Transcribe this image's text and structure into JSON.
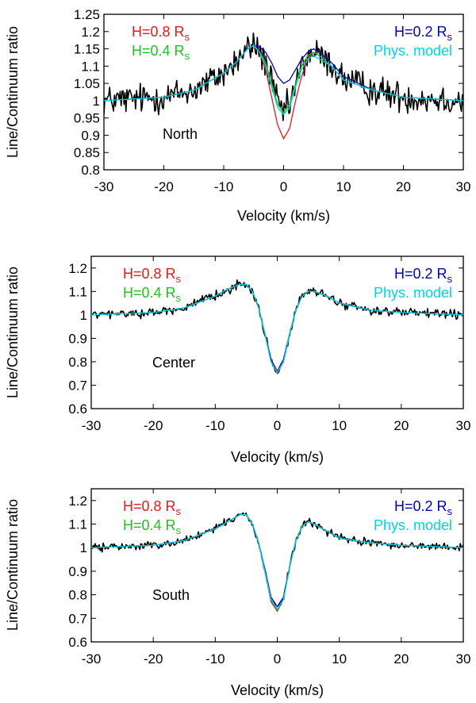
{
  "chart_data": [
    {
      "type": "line",
      "panel": "North",
      "annotation": "North",
      "xlabel": "Velocity (km/s)",
      "ylabel": "Line/Continuum ratio",
      "xlim": [
        -30,
        30
      ],
      "ylim": [
        0.8,
        1.25
      ],
      "xticks": [
        -30,
        -20,
        -10,
        0,
        10,
        20,
        30
      ],
      "yticks": [
        0.8,
        0.85,
        0.9,
        0.95,
        1,
        1.05,
        1.1,
        1.15,
        1.2,
        1.25
      ],
      "ytick_labels": [
        "0.8",
        "0.85",
        "0.9",
        "0.95",
        "1",
        "1.05",
        "1.1",
        "1.15",
        "1.2",
        "1.25"
      ],
      "legend": [
        {
          "text": "H=0.8 R",
          "sub": "s",
          "color": "#e31a1c",
          "position": "top-left"
        },
        {
          "text": "H=0.4 R",
          "sub": "s",
          "color": "#22c022",
          "position": "top-left"
        },
        {
          "text": "H=0.2 R",
          "sub": "s",
          "color": "#0000b4",
          "position": "top-right"
        },
        {
          "text": "Phys. model",
          "sub": "",
          "color": "#00d4e0",
          "position": "top-right"
        }
      ],
      "model_x": [
        -30,
        -20,
        -15,
        -10,
        -8,
        -6,
        -5,
        -4,
        -3,
        -2,
        -1,
        0,
        1,
        2,
        3,
        4,
        5,
        6,
        8,
        10,
        15,
        20,
        30
      ],
      "series": [
        {
          "name": "H=0.8 Rs",
          "color": "#e31a1c",
          "values": [
            1.0,
            1.01,
            1.03,
            1.08,
            1.11,
            1.15,
            1.16,
            1.14,
            1.09,
            1.01,
            0.93,
            0.89,
            0.92,
            1.0,
            1.07,
            1.12,
            1.14,
            1.13,
            1.1,
            1.06,
            1.03,
            1.01,
            1.0
          ]
        },
        {
          "name": "H=0.4 Rs",
          "color": "#22c022",
          "values": [
            1.0,
            1.01,
            1.03,
            1.08,
            1.11,
            1.15,
            1.16,
            1.14,
            1.11,
            1.05,
            0.99,
            0.965,
            0.99,
            1.05,
            1.1,
            1.13,
            1.14,
            1.13,
            1.1,
            1.06,
            1.03,
            1.01,
            1.0
          ]
        },
        {
          "name": "H=0.2 Rs",
          "color": "#0000b4",
          "values": [
            1.0,
            1.01,
            1.03,
            1.08,
            1.11,
            1.15,
            1.16,
            1.155,
            1.14,
            1.11,
            1.07,
            1.05,
            1.06,
            1.09,
            1.12,
            1.14,
            1.15,
            1.14,
            1.11,
            1.07,
            1.03,
            1.01,
            1.0
          ]
        },
        {
          "name": "Phys. model",
          "color": "#00d4e0",
          "values": [
            1.0,
            1.01,
            1.03,
            1.08,
            1.11,
            1.15,
            1.16,
            1.14,
            1.1,
            1.04,
            0.98,
            0.96,
            0.98,
            1.04,
            1.09,
            1.12,
            1.13,
            1.12,
            1.1,
            1.06,
            1.03,
            1.01,
            1.0
          ]
        }
      ],
      "observed": {
        "name": "Observed",
        "color": "#000000",
        "noise": 0.022,
        "spacing": 0.16
      }
    },
    {
      "type": "line",
      "panel": "Center",
      "annotation": "Center",
      "xlabel": "Velocity (km/s)",
      "ylabel": "Line/Continuum ratio",
      "xlim": [
        -30,
        30
      ],
      "ylim": [
        0.6,
        1.25
      ],
      "xticks": [
        -30,
        -20,
        -10,
        0,
        10,
        20,
        30
      ],
      "yticks": [
        0.6,
        0.7,
        0.8,
        0.9,
        1,
        1.1,
        1.2
      ],
      "ytick_labels": [
        "0.6",
        "0.7",
        "0.8",
        "0.9",
        "1",
        "1.1",
        "1.2"
      ],
      "legend": [
        {
          "text": "H=0.8 R",
          "sub": "s",
          "color": "#e31a1c",
          "position": "top-left"
        },
        {
          "text": "H=0.4 R",
          "sub": "s",
          "color": "#22c022",
          "position": "top-left"
        },
        {
          "text": "H=0.2 R",
          "sub": "s",
          "color": "#0000b4",
          "position": "top-right"
        },
        {
          "text": "Phys. model",
          "sub": "",
          "color": "#00d4e0",
          "position": "top-right"
        }
      ],
      "model_x": [
        -30,
        -20,
        -15,
        -10,
        -8,
        -6,
        -5,
        -4,
        -3,
        -2,
        -1,
        0,
        1,
        2,
        3,
        4,
        5,
        6,
        8,
        10,
        15,
        20,
        30
      ],
      "series": [
        {
          "name": "H=0.8 Rs",
          "color": "#e31a1c",
          "values": [
            1.0,
            1.01,
            1.03,
            1.08,
            1.11,
            1.13,
            1.13,
            1.1,
            1.03,
            0.92,
            0.8,
            0.75,
            0.8,
            0.92,
            1.02,
            1.08,
            1.1,
            1.1,
            1.08,
            1.05,
            1.02,
            1.01,
            1.0
          ]
        },
        {
          "name": "H=0.4 Rs",
          "color": "#22c022",
          "values": [
            1.0,
            1.01,
            1.03,
            1.08,
            1.11,
            1.13,
            1.13,
            1.1,
            1.03,
            0.92,
            0.8,
            0.755,
            0.8,
            0.92,
            1.02,
            1.08,
            1.1,
            1.1,
            1.08,
            1.05,
            1.02,
            1.01,
            1.0
          ]
        },
        {
          "name": "H=0.2 Rs",
          "color": "#0000b4",
          "values": [
            1.0,
            1.01,
            1.03,
            1.08,
            1.11,
            1.13,
            1.13,
            1.1,
            1.03,
            0.92,
            0.81,
            0.76,
            0.81,
            0.92,
            1.02,
            1.08,
            1.1,
            1.1,
            1.08,
            1.05,
            1.02,
            1.01,
            1.0
          ]
        },
        {
          "name": "Phys. model",
          "color": "#00d4e0",
          "values": [
            1.0,
            1.01,
            1.03,
            1.08,
            1.11,
            1.13,
            1.13,
            1.1,
            1.03,
            0.92,
            0.8,
            0.755,
            0.8,
            0.92,
            1.02,
            1.08,
            1.1,
            1.1,
            1.08,
            1.05,
            1.02,
            1.01,
            1.0
          ]
        }
      ],
      "observed": {
        "name": "Observed",
        "color": "#000000",
        "noise": 0.009,
        "spacing": 0.16
      }
    },
    {
      "type": "line",
      "panel": "South",
      "annotation": "South",
      "xlabel": "Velocity (km/s)",
      "ylabel": "Line/Continuum ratio",
      "xlim": [
        -30,
        30
      ],
      "ylim": [
        0.6,
        1.25
      ],
      "xticks": [
        -30,
        -20,
        -10,
        0,
        10,
        20,
        30
      ],
      "yticks": [
        0.6,
        0.7,
        0.8,
        0.9,
        1,
        1.1,
        1.2
      ],
      "ytick_labels": [
        "0.6",
        "0.7",
        "0.8",
        "0.9",
        "1",
        "1.1",
        "1.2"
      ],
      "legend": [
        {
          "text": "H=0.8 R",
          "sub": "s",
          "color": "#e31a1c",
          "position": "top-left"
        },
        {
          "text": "H=0.4 R",
          "sub": "s",
          "color": "#22c022",
          "position": "top-left"
        },
        {
          "text": "H=0.2 R",
          "sub": "s",
          "color": "#0000b4",
          "position": "top-right"
        },
        {
          "text": "Phys. model",
          "sub": "",
          "color": "#00d4e0",
          "position": "top-right"
        }
      ],
      "model_x": [
        -30,
        -20,
        -15,
        -10,
        -8,
        -6,
        -5,
        -4,
        -3,
        -2,
        -1,
        0,
        1,
        2,
        3,
        4,
        5,
        6,
        8,
        10,
        15,
        20,
        30
      ],
      "series": [
        {
          "name": "H=0.8 Rs",
          "color": "#e31a1c",
          "values": [
            1.0,
            1.01,
            1.03,
            1.08,
            1.11,
            1.14,
            1.14,
            1.1,
            1.02,
            0.9,
            0.77,
            0.73,
            0.78,
            0.92,
            1.03,
            1.09,
            1.11,
            1.1,
            1.07,
            1.04,
            1.02,
            1.01,
            1.0
          ]
        },
        {
          "name": "H=0.4 Rs",
          "color": "#22c022",
          "values": [
            1.0,
            1.01,
            1.03,
            1.08,
            1.11,
            1.14,
            1.14,
            1.1,
            1.02,
            0.9,
            0.78,
            0.735,
            0.78,
            0.92,
            1.03,
            1.09,
            1.11,
            1.1,
            1.07,
            1.04,
            1.02,
            1.01,
            1.0
          ]
        },
        {
          "name": "H=0.2 Rs",
          "color": "#0000b4",
          "values": [
            1.0,
            1.01,
            1.03,
            1.08,
            1.11,
            1.14,
            1.14,
            1.1,
            1.02,
            0.91,
            0.79,
            0.75,
            0.79,
            0.92,
            1.03,
            1.09,
            1.11,
            1.1,
            1.07,
            1.04,
            1.02,
            1.01,
            1.0
          ]
        },
        {
          "name": "Phys. model",
          "color": "#00d4e0",
          "values": [
            1.0,
            1.01,
            1.03,
            1.08,
            1.11,
            1.14,
            1.14,
            1.1,
            1.02,
            0.9,
            0.78,
            0.74,
            0.78,
            0.92,
            1.03,
            1.09,
            1.11,
            1.1,
            1.07,
            1.04,
            1.02,
            1.01,
            1.0
          ]
        }
      ],
      "observed": {
        "name": "Observed",
        "color": "#000000",
        "noise": 0.008,
        "spacing": 0.16
      }
    }
  ]
}
